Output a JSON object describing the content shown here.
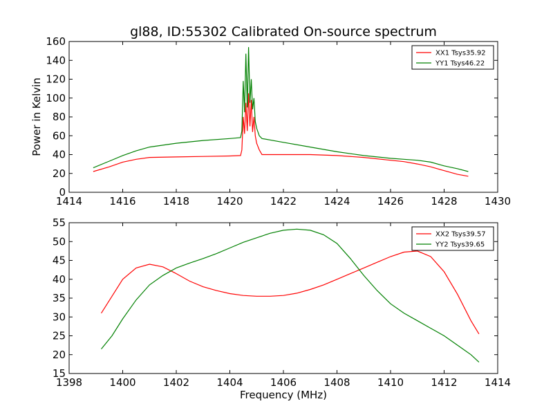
{
  "chart_data": [
    {
      "type": "line",
      "title": "gl88, ID:55302 Calibrated On-source spectrum",
      "xlabel": "",
      "ylabel": "Power in Kelvin",
      "xlim": [
        1414,
        1430
      ],
      "ylim": [
        0,
        160
      ],
      "xticks": [
        "1414",
        "1416",
        "1418",
        "1420",
        "1422",
        "1424",
        "1426",
        "1428",
        "1430"
      ],
      "yticks": [
        "0",
        "20",
        "40",
        "60",
        "80",
        "100",
        "120",
        "140",
        "160"
      ],
      "legend_position": "top-right",
      "series": [
        {
          "name": "XX1 Tsys35.92",
          "color": "#ff0000",
          "x": [
            1414.9,
            1415.5,
            1416.0,
            1416.5,
            1417.0,
            1418.0,
            1419.0,
            1420.0,
            1420.4,
            1420.45,
            1420.5,
            1420.55,
            1420.6,
            1420.65,
            1420.7,
            1420.75,
            1420.8,
            1420.85,
            1420.9,
            1420.95,
            1421.0,
            1421.1,
            1421.2,
            1422.0,
            1423.0,
            1424.0,
            1425.0,
            1426.0,
            1426.5,
            1427.0,
            1427.5,
            1428.0,
            1428.5,
            1428.9
          ],
          "y": [
            22,
            27,
            32,
            35,
            37,
            37.5,
            38,
            38.5,
            39,
            45,
            80,
            62,
            95,
            65,
            105,
            70,
            98,
            64,
            80,
            60,
            52,
            45,
            40,
            40,
            40,
            39,
            37,
            34,
            32.5,
            30,
            27,
            23,
            19,
            17
          ]
        },
        {
          "name": "YY1 Tsys46.22",
          "color": "#008000",
          "x": [
            1414.9,
            1415.5,
            1416.0,
            1416.5,
            1417.0,
            1418.0,
            1419.0,
            1420.0,
            1420.4,
            1420.45,
            1420.5,
            1420.55,
            1420.6,
            1420.65,
            1420.7,
            1420.75,
            1420.8,
            1420.85,
            1420.9,
            1420.95,
            1421.0,
            1421.1,
            1421.2,
            1422.0,
            1423.0,
            1424.0,
            1425.0,
            1426.0,
            1426.5,
            1427.0,
            1427.5,
            1428.0,
            1428.5,
            1428.9
          ],
          "y": [
            26,
            33,
            39,
            44,
            48,
            52,
            55,
            57,
            58,
            65,
            118,
            85,
            147,
            90,
            154,
            95,
            120,
            88,
            100,
            75,
            68,
            60,
            57,
            53,
            48,
            43,
            39,
            36,
            35,
            34,
            32,
            28,
            25,
            22
          ]
        }
      ]
    },
    {
      "type": "line",
      "title": "",
      "xlabel": "Frequency (MHz)",
      "ylabel": "",
      "xlim": [
        1398,
        1414
      ],
      "ylim": [
        15,
        55
      ],
      "xticks": [
        "1398",
        "1400",
        "1402",
        "1404",
        "1406",
        "1408",
        "1410",
        "1412",
        "1414"
      ],
      "yticks": [
        "15",
        "20",
        "25",
        "30",
        "35",
        "40",
        "45",
        "50",
        "55"
      ],
      "legend_position": "top-right",
      "series": [
        {
          "name": "XX2 Tsys39.57",
          "color": "#ff0000",
          "x": [
            1399.2,
            1399.6,
            1400.0,
            1400.5,
            1401.0,
            1401.5,
            1402.0,
            1402.5,
            1403.0,
            1403.5,
            1404.0,
            1404.5,
            1405.0,
            1405.5,
            1406.0,
            1406.5,
            1407.0,
            1407.5,
            1408.0,
            1408.5,
            1409.0,
            1409.5,
            1410.0,
            1410.5,
            1411.0,
            1411.5,
            1412.0,
            1412.5,
            1413.0,
            1413.3
          ],
          "y": [
            31,
            35.5,
            40,
            43,
            44,
            43.3,
            41.5,
            39.5,
            38,
            37,
            36.2,
            35.7,
            35.5,
            35.5,
            35.7,
            36.3,
            37.3,
            38.5,
            40,
            41.5,
            43,
            44.5,
            46,
            47.2,
            47.5,
            46,
            42,
            36,
            29,
            25.5
          ]
        },
        {
          "name": "YY2 Tsys39.65",
          "color": "#008000",
          "x": [
            1399.2,
            1399.6,
            1400.0,
            1400.5,
            1401.0,
            1401.5,
            1402.0,
            1402.5,
            1403.0,
            1403.5,
            1404.0,
            1404.5,
            1405.0,
            1405.5,
            1406.0,
            1406.5,
            1407.0,
            1407.5,
            1408.0,
            1408.5,
            1409.0,
            1409.5,
            1410.0,
            1410.5,
            1411.0,
            1411.5,
            1412.0,
            1412.5,
            1413.0,
            1413.3
          ],
          "y": [
            21.5,
            25,
            29.5,
            34.5,
            38.5,
            41,
            43,
            44.3,
            45.5,
            46.8,
            48.3,
            49.8,
            51,
            52.2,
            53,
            53.3,
            53,
            51.8,
            49.5,
            45.5,
            41,
            37,
            33.5,
            31,
            29,
            27,
            25,
            22.5,
            20,
            18
          ]
        }
      ]
    }
  ]
}
